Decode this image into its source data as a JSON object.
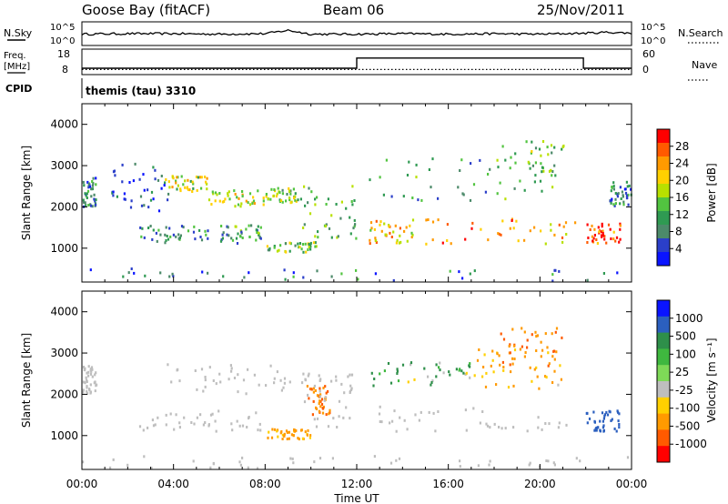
{
  "header": {
    "station": "Goose Bay (fitACF)",
    "beam": "Beam 06",
    "date": "25/Nov/2011"
  },
  "status": {
    "nsky_label": "N.Sky",
    "nsearch_label": "N.Search",
    "nsky_ticks": [
      "10^5",
      "10^0"
    ],
    "nsearch_ticks": [
      "10^5",
      "10^0"
    ],
    "freq_label_1": "Freq.",
    "freq_label_2": "[MHz]",
    "freq_ticks": [
      "18",
      "8"
    ],
    "nave_label": "Nave",
    "nave_ticks": [
      "60",
      "0"
    ],
    "cpid_label": "CPID",
    "cpid_text": "themis (tau) 3310"
  },
  "power_panel": {
    "ylabel": "Slant Range [km]",
    "colorbar_label": "Power [dB]",
    "colorbar_ticks": [
      "28",
      "24",
      "20",
      "16",
      "12",
      "8",
      "4"
    ],
    "colorbar_colors": [
      "#ff0000",
      "#ff5a00",
      "#ff9a00",
      "#ffd000",
      "#b8e000",
      "#52c440",
      "#2f9a52",
      "#4c8a6a",
      "#2b3fc9",
      "#0a14ff"
    ]
  },
  "velocity_panel": {
    "ylabel": "Slant Range [km]",
    "colorbar_label": "Velocity [m s⁻¹]",
    "colorbar_ticks": [
      "1000",
      "500",
      "100",
      "25",
      "-25",
      "-100",
      "-500",
      "-1000"
    ],
    "colorbar_colors": [
      "#0a14ff",
      "#2b5fbf",
      "#2e8f4a",
      "#3fb83f",
      "#7ed957",
      "#bebebe",
      "#ffd000",
      "#ff9a00",
      "#ff5a00",
      "#ff0000"
    ]
  },
  "xaxis": {
    "label": "Time UT",
    "ticks": [
      "00:00",
      "04:00",
      "08:00",
      "12:00",
      "16:00",
      "20:00",
      "00:00"
    ]
  },
  "chart_data": [
    {
      "type": "line",
      "title": "N.Sky",
      "x_hours": [
        0,
        2,
        4,
        6,
        8,
        9,
        10,
        12,
        14,
        16,
        18,
        20,
        21,
        22,
        23,
        24
      ],
      "y_log10": [
        2.4,
        2.5,
        2.5,
        2.4,
        2.5,
        3.2,
        2.4,
        2.4,
        2.5,
        2.4,
        2.5,
        2.4,
        2.5,
        2.6,
        2.8,
        2.6
      ],
      "ylim": [
        "10^0",
        "10^5"
      ]
    },
    {
      "type": "line",
      "title": "Freq. [MHz]",
      "x_hours": [
        0,
        12,
        12,
        21.9,
        21.9,
        24
      ],
      "values": [
        10.5,
        10.5,
        14.5,
        14.5,
        10.5,
        10.5
      ],
      "ylim": [
        8,
        18
      ],
      "nave": 12
    },
    {
      "type": "heatmap",
      "title": "Power [dB]",
      "xlabel": "Time UT",
      "ylabel": "Slant Range [km]",
      "xlim": [
        0,
        24
      ],
      "ylim": [
        180,
        4500
      ],
      "yticks": [
        1000,
        2000,
        3000,
        4000
      ],
      "clim": [
        0,
        30
      ],
      "regions": [
        {
          "t0": 0.0,
          "t1": 0.6,
          "r0": 2000,
          "r1": 2700,
          "p": 8
        },
        {
          "t0": 1.2,
          "t1": 3.8,
          "r0": 1900,
          "r1": 3050,
          "p": 6
        },
        {
          "t0": 3.6,
          "t1": 5.5,
          "r0": 2350,
          "r1": 2750,
          "p": 16
        },
        {
          "t0": 5.5,
          "t1": 8.0,
          "r0": 2000,
          "r1": 2400,
          "p": 18
        },
        {
          "t0": 8.0,
          "t1": 9.5,
          "r0": 2100,
          "r1": 2450,
          "p": 14
        },
        {
          "t0": 2.5,
          "t1": 5.5,
          "r0": 1100,
          "r1": 1600,
          "p": 9
        },
        {
          "t0": 6.0,
          "t1": 7.8,
          "r0": 1100,
          "r1": 1550,
          "p": 10
        },
        {
          "t0": 8.0,
          "t1": 10.2,
          "r0": 900,
          "r1": 1150,
          "p": 14
        },
        {
          "t0": 9.5,
          "t1": 12.0,
          "r0": 1200,
          "r1": 2500,
          "p": 12
        },
        {
          "t0": 12.5,
          "t1": 14.5,
          "r0": 1100,
          "r1": 1700,
          "p": 20
        },
        {
          "t0": 14.5,
          "t1": 21.5,
          "r0": 1100,
          "r1": 1700,
          "p": 22
        },
        {
          "t0": 12.5,
          "t1": 21.0,
          "r0": 2100,
          "r1": 3200,
          "p": 10
        },
        {
          "t0": 18.0,
          "t1": 21.0,
          "r0": 2600,
          "r1": 3600,
          "p": 14
        },
        {
          "t0": 22.0,
          "t1": 23.5,
          "r0": 1100,
          "r1": 1600,
          "p": 26
        },
        {
          "t0": 23.0,
          "t1": 24.0,
          "r0": 2000,
          "r1": 2600,
          "p": 8
        },
        {
          "t0": 0.0,
          "t1": 24.0,
          "r0": 200,
          "r1": 500,
          "p": 7
        }
      ]
    },
    {
      "type": "heatmap",
      "title": "Velocity [m s-1]",
      "xlabel": "Time UT",
      "ylabel": "Slant Range [km]",
      "xlim": [
        0,
        24
      ],
      "ylim": [
        180,
        4500
      ],
      "yticks": [
        1000,
        2000,
        3000,
        4000
      ],
      "clim": [
        -1000,
        1000
      ],
      "regions": [
        {
          "t0": 0.0,
          "t1": 0.6,
          "r0": 2000,
          "r1": 2700,
          "v": 0
        },
        {
          "t0": 3.6,
          "t1": 9.5,
          "r0": 2000,
          "r1": 2750,
          "v": 0
        },
        {
          "t0": 2.5,
          "t1": 7.8,
          "r0": 1100,
          "r1": 1600,
          "v": 0
        },
        {
          "t0": 8.0,
          "t1": 10.2,
          "r0": 900,
          "r1": 1150,
          "v": -150
        },
        {
          "t0": 9.8,
          "t1": 10.8,
          "r0": 1500,
          "r1": 2200,
          "v": -300
        },
        {
          "t0": 9.5,
          "t1": 12.0,
          "r0": 1200,
          "r1": 2500,
          "v": 0
        },
        {
          "t0": 12.5,
          "t1": 21.5,
          "r0": 1100,
          "r1": 1700,
          "v": 0
        },
        {
          "t0": 12.5,
          "t1": 17.0,
          "r0": 2200,
          "r1": 2800,
          "v": 60
        },
        {
          "t0": 17.0,
          "t1": 21.0,
          "r0": 2100,
          "r1": 3100,
          "v": -120
        },
        {
          "t0": 18.0,
          "t1": 21.0,
          "r0": 2600,
          "r1": 3600,
          "v": -300
        },
        {
          "t0": 22.0,
          "t1": 23.5,
          "r0": 1100,
          "r1": 1600,
          "v": 600
        },
        {
          "t0": 0.0,
          "t1": 24.0,
          "r0": 200,
          "r1": 500,
          "v": 0
        }
      ]
    }
  ]
}
